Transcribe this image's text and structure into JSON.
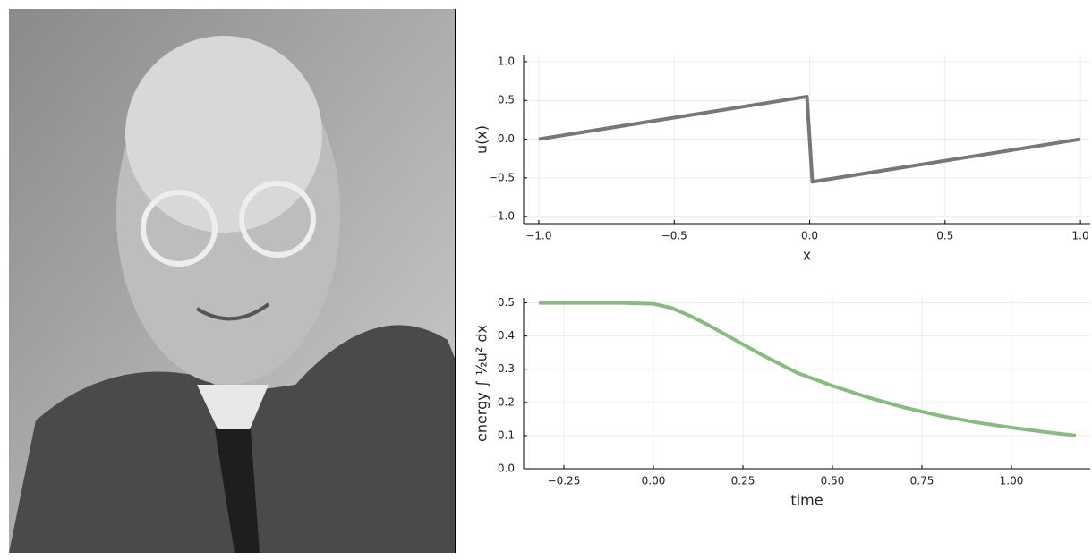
{
  "chart_data": [
    {
      "type": "line",
      "x_label": "x",
      "y_label": "u(x)",
      "x": [
        -1,
        -0.01,
        0.01,
        1
      ],
      "values": [
        0,
        0.55,
        -0.55,
        0
      ],
      "color": "#777777",
      "xlim": [
        -1.056,
        1.036
      ],
      "ylim": [
        -1.09,
        1.08
      ],
      "xticks": [
        {
          "value": -1,
          "label": "−1.0"
        },
        {
          "value": -0.5,
          "label": "−0.5"
        },
        {
          "value": 0,
          "label": "0.0"
        },
        {
          "value": 0.5,
          "label": "0.5"
        },
        {
          "value": 1,
          "label": "1.0"
        }
      ],
      "yticks": [
        {
          "value": -1,
          "label": "−1.0"
        },
        {
          "value": -0.5,
          "label": "−0.5"
        },
        {
          "value": 0,
          "label": "0.0"
        },
        {
          "value": 0.5,
          "label": "0.5"
        },
        {
          "value": 1,
          "label": "1.0"
        }
      ],
      "grid": true
    },
    {
      "type": "line",
      "x_label": "time",
      "y_label": "energy ∫ ½u² dx",
      "x": [
        -0.32,
        -0.2,
        -0.1,
        0,
        0.05,
        0.1,
        0.15,
        0.2,
        0.25,
        0.3,
        0.4,
        0.5,
        0.6,
        0.7,
        0.8,
        0.9,
        1.0,
        1.1,
        1.18
      ],
      "values": [
        0.5,
        0.5,
        0.5,
        0.497,
        0.485,
        0.462,
        0.435,
        0.405,
        0.375,
        0.345,
        0.29,
        0.25,
        0.215,
        0.185,
        0.16,
        0.14,
        0.124,
        0.11,
        0.1
      ],
      "color": "#88bb80",
      "xlim": [
        -0.3625,
        1.22
      ],
      "ylim": [
        0,
        0.515
      ],
      "xticks": [
        {
          "value": -0.25,
          "label": "−0.25"
        },
        {
          "value": 0,
          "label": "0.00"
        },
        {
          "value": 0.25,
          "label": "0.25"
        },
        {
          "value": 0.5,
          "label": "0.50"
        },
        {
          "value": 0.75,
          "label": "0.75"
        },
        {
          "value": 1,
          "label": "1.00"
        }
      ],
      "yticks": [
        {
          "value": 0,
          "label": "0.0"
        },
        0.1,
        0.2,
        0.3,
        0.4,
        0.5
      ],
      "grid": true
    }
  ]
}
